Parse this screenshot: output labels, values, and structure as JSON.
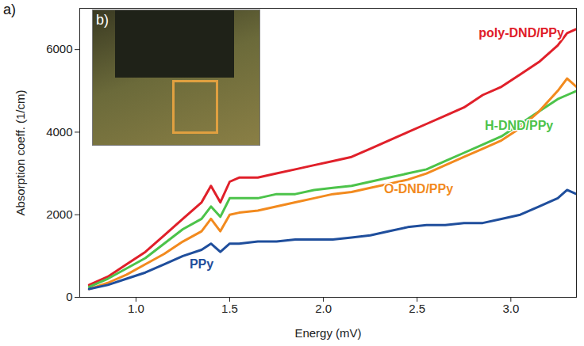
{
  "chart_data": {
    "type": "line",
    "panel_label": "a)",
    "inset_label": "b)",
    "x_label": "Energy (mV)",
    "y_label": "Absorption coeff. (1/cm)",
    "x": [
      0.75,
      0.85,
      0.95,
      1.05,
      1.15,
      1.25,
      1.35,
      1.4,
      1.45,
      1.5,
      1.55,
      1.65,
      1.75,
      1.85,
      1.95,
      2.05,
      2.15,
      2.25,
      2.35,
      2.45,
      2.55,
      2.65,
      2.75,
      2.85,
      2.95,
      3.05,
      3.15,
      3.25,
      3.3,
      3.35
    ],
    "series": [
      {
        "name": "poly-DND/PPy",
        "color": "#e0202a",
        "values": [
          300,
          500,
          800,
          1100,
          1500,
          1900,
          2300,
          2700,
          2300,
          2800,
          2900,
          2900,
          3000,
          3100,
          3200,
          3300,
          3400,
          3600,
          3800,
          4000,
          4200,
          4400,
          4600,
          4900,
          5100,
          5400,
          5700,
          6100,
          6400,
          6500
        ]
      },
      {
        "name": "H-DND/PPy",
        "color": "#4cc34a",
        "values": [
          250,
          450,
          700,
          950,
          1300,
          1650,
          1900,
          2200,
          1950,
          2400,
          2400,
          2400,
          2500,
          2500,
          2600,
          2650,
          2700,
          2800,
          2900,
          3000,
          3100,
          3300,
          3500,
          3700,
          3900,
          4200,
          4500,
          4800,
          4900,
          5000
        ]
      },
      {
        "name": "O-DND/PPy",
        "color": "#f28a1e",
        "values": [
          200,
          350,
          550,
          800,
          1050,
          1350,
          1600,
          1900,
          1600,
          2000,
          2050,
          2100,
          2200,
          2300,
          2400,
          2500,
          2550,
          2650,
          2750,
          2850,
          3000,
          3200,
          3400,
          3600,
          3800,
          4100,
          4500,
          5000,
          5300,
          5100
        ]
      },
      {
        "name": "PPy",
        "color": "#1f4e9c",
        "values": [
          200,
          300,
          450,
          600,
          800,
          1000,
          1150,
          1300,
          1100,
          1300,
          1300,
          1350,
          1350,
          1400,
          1400,
          1400,
          1450,
          1500,
          1600,
          1700,
          1750,
          1750,
          1800,
          1800,
          1900,
          2000,
          2200,
          2400,
          2600,
          2500
        ]
      }
    ],
    "xlim": [
      0.7,
      3.35
    ],
    "ylim": [
      0,
      7000
    ],
    "xticks": [
      {
        "value": 1,
        "label": "1.0"
      },
      {
        "value": 1.5,
        "label": "1.5"
      },
      {
        "value": 2,
        "label": "2.0"
      },
      {
        "value": 2.5,
        "label": "2.5"
      },
      {
        "value": 3,
        "label": "3.0"
      }
    ],
    "yticks": [
      0,
      2000,
      4000,
      6000
    ],
    "grid": false
  }
}
